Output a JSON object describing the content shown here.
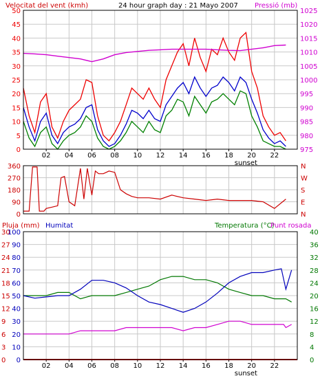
{
  "header": {
    "left_title": "Velocitat del vent (kmh)",
    "center_title": "24 hour graph day : 21 Mayo 2007",
    "right_title": "Pressió (mb)"
  },
  "colors": {
    "background": "#ffffff",
    "wind": "#ee0000",
    "wind_avg": "#0000cc",
    "gust_green": "#008000",
    "pressure": "#d000d0",
    "direction": "#cc0000",
    "rain": "#cc0000",
    "humidity": "#0000bb",
    "temperature": "#007700",
    "dewpoint": "#d000d0",
    "grid": "#c8c8c8"
  },
  "chart_data": [
    {
      "name": "wind-pressure",
      "type": "line",
      "title": "24 hour graph day : 21 Mayo 2007",
      "ylabel_left": "Velocitat del vent (kmh)",
      "ylabel_right": "Pressió (mb)",
      "x_ticks": [
        "02",
        "04",
        "06",
        "08",
        "10",
        "12",
        "14",
        "16",
        "18",
        "20",
        "22"
      ],
      "x_extra_label": "sunset",
      "xlim": [
        0,
        24
      ],
      "ylim_left": [
        0,
        50
      ],
      "ylim_right": [
        975,
        1025
      ],
      "yticks_left": [
        0,
        5,
        10,
        15,
        20,
        25,
        30,
        35,
        40,
        45,
        50
      ],
      "yticks_right": [
        975,
        980,
        985,
        990,
        995,
        1000,
        1005,
        1010,
        1015,
        1020,
        1025
      ],
      "grid": true,
      "series": [
        {
          "x": [
            0,
            0.5,
            1,
            1.5,
            2,
            2.5,
            3,
            3.5,
            4,
            4.5,
            5,
            5.5,
            6,
            6.5,
            7,
            7.5,
            8,
            8.5,
            9,
            9.5,
            10,
            10.5,
            11,
            11.5,
            12,
            12.5,
            13,
            13.5,
            14,
            14.5,
            15,
            15.5,
            16,
            16.5,
            17,
            17.5,
            18,
            18.5,
            19,
            19.5,
            20,
            20.5,
            21,
            21.5,
            22,
            22.5,
            23
          ],
          "values": [
            22,
            12,
            6,
            17,
            20,
            8,
            4,
            10,
            14,
            16,
            18,
            25,
            24,
            12,
            5,
            3,
            6,
            10,
            16,
            22,
            20,
            18,
            22,
            18,
            15,
            25,
            30,
            35,
            38,
            30,
            40,
            33,
            28,
            36,
            34,
            40,
            35,
            32,
            40,
            42,
            28,
            22,
            12,
            8,
            5,
            6,
            3
          ]
        },
        {
          "x": [
            0,
            0.5,
            1,
            1.5,
            2,
            2.5,
            3,
            3.5,
            4,
            4.5,
            5,
            5.5,
            6,
            6.5,
            7,
            7.5,
            8,
            8.5,
            9,
            9.5,
            10,
            10.5,
            11,
            11.5,
            12,
            12.5,
            13,
            13.5,
            14,
            14.5,
            15,
            15.5,
            16,
            16.5,
            17,
            17.5,
            18,
            18.5,
            19,
            19.5,
            20,
            20.5,
            21,
            21.5,
            22,
            22.5,
            23
          ],
          "values": [
            15,
            8,
            3,
            10,
            13,
            5,
            2,
            6,
            8,
            9,
            11,
            15,
            16,
            7,
            3,
            1,
            2,
            5,
            9,
            14,
            13,
            11,
            14,
            11,
            10,
            16,
            19,
            22,
            24,
            20,
            26,
            22,
            19,
            22,
            23,
            26,
            24,
            21,
            26,
            24,
            18,
            13,
            7,
            4,
            2,
            3,
            1
          ]
        },
        {
          "x": [
            0,
            0.5,
            1,
            1.5,
            2,
            2.5,
            3,
            3.5,
            4,
            4.5,
            5,
            5.5,
            6,
            6.5,
            7,
            7.5,
            8,
            8.5,
            9,
            9.5,
            10,
            10.5,
            11,
            11.5,
            12,
            12.5,
            13,
            13.5,
            14,
            14.5,
            15,
            15.5,
            16,
            16.5,
            17,
            17.5,
            18,
            18.5,
            19,
            19.5,
            20,
            20.5,
            21,
            21.5,
            22,
            22.5,
            23
          ],
          "values": [
            10,
            4,
            1,
            6,
            8,
            2,
            0,
            3,
            5,
            6,
            8,
            12,
            10,
            4,
            1,
            0,
            1,
            3,
            6,
            10,
            8,
            6,
            10,
            7,
            6,
            12,
            14,
            18,
            17,
            12,
            19,
            16,
            13,
            17,
            18,
            20,
            18,
            16,
            21,
            20,
            12,
            8,
            3,
            2,
            1,
            1,
            0
          ]
        },
        {
          "x": [
            0,
            1,
            2,
            3,
            4,
            5,
            6,
            7,
            8,
            9,
            10,
            11,
            12,
            13,
            14,
            15,
            16,
            17,
            18,
            19,
            20,
            21,
            22,
            23
          ],
          "values": [
            1009.5,
            1009.3,
            1009.0,
            1008.5,
            1008.0,
            1007.5,
            1006.5,
            1007.5,
            1009.0,
            1009.8,
            1010.2,
            1010.6,
            1010.8,
            1011.0,
            1011.0,
            1011.0,
            1011.0,
            1010.8,
            1010.6,
            1010.5,
            1011.0,
            1011.5,
            1012.3,
            1012.5
          ],
          "axis": "right"
        }
      ]
    },
    {
      "name": "wind-direction",
      "type": "line",
      "x_ticks": [
        "02",
        "04",
        "06",
        "08",
        "10",
        "12",
        "14",
        "16",
        "18",
        "20",
        "22"
      ],
      "xlim": [
        0,
        24
      ],
      "ylim": [
        0,
        360
      ],
      "yticks_left": [
        0,
        90,
        180,
        270,
        360
      ],
      "yticks_right": [
        "N",
        "E",
        "S",
        "W",
        "N"
      ],
      "series": [
        {
          "x": [
            0,
            0.5,
            0.8,
            1.2,
            1.4,
            1.8,
            2,
            2.5,
            3,
            3.3,
            3.6,
            4,
            4.5,
            5,
            5.3,
            5.6,
            6,
            6.3,
            6.6,
            7,
            7.5,
            8,
            8.5,
            9,
            9.5,
            10,
            11,
            12,
            13,
            14,
            15,
            16,
            17,
            18,
            19,
            20,
            21,
            22,
            23
          ],
          "values": [
            20,
            20,
            350,
            350,
            20,
            20,
            40,
            50,
            60,
            270,
            280,
            90,
            60,
            340,
            110,
            340,
            140,
            320,
            300,
            300,
            320,
            310,
            180,
            150,
            130,
            120,
            120,
            110,
            140,
            120,
            110,
            100,
            110,
            100,
            100,
            100,
            90,
            40,
            110
          ]
        }
      ]
    },
    {
      "name": "humidity-temperature",
      "type": "line",
      "labels_left": [
        "Pluja (mm)",
        "Humitat"
      ],
      "labels_right": [
        "Temperatura (°C)",
        "Punt rosada"
      ],
      "x_ticks": [
        "02",
        "04",
        "06",
        "08",
        "10",
        "12",
        "14",
        "16",
        "18",
        "20",
        "22"
      ],
      "x_extra_label": "sunset",
      "xlim": [
        0,
        24
      ],
      "yticks_rain": [
        0,
        3,
        6,
        9,
        12,
        15,
        18,
        21,
        24,
        27,
        30
      ],
      "yticks_humidity": [
        0,
        10,
        20,
        30,
        40,
        50,
        60,
        70,
        80,
        90,
        100
      ],
      "yticks_temp": [
        0,
        4,
        8,
        12,
        16,
        20,
        24,
        28,
        32,
        36,
        40
      ],
      "series": [
        {
          "name": "Humitat",
          "axis": "humidity",
          "x": [
            0,
            1,
            2,
            3,
            4,
            5,
            6,
            7,
            8,
            9,
            10,
            11,
            12,
            13,
            14,
            15,
            16,
            17,
            18,
            19,
            20,
            21,
            22,
            22.6,
            23,
            23.5
          ],
          "values": [
            50,
            48,
            49,
            50,
            50,
            55,
            62,
            62,
            60,
            56,
            50,
            45,
            43,
            40,
            37,
            40,
            45,
            52,
            60,
            65,
            68,
            68,
            70,
            71,
            55,
            70
          ]
        },
        {
          "name": "Temperatura (°C)",
          "axis": "temperature",
          "x": [
            0,
            1,
            2,
            3,
            4,
            5,
            6,
            7,
            8,
            9,
            10,
            11,
            12,
            13,
            14,
            15,
            16,
            17,
            18,
            19,
            20,
            21,
            22,
            23,
            23.5
          ],
          "values": [
            20,
            20,
            20,
            21,
            21,
            19,
            20,
            20,
            20,
            21,
            22,
            23,
            25,
            26,
            26,
            25,
            25,
            24,
            22,
            21,
            20,
            20,
            19,
            19,
            18
          ]
        },
        {
          "name": "Punt rosada",
          "axis": "temperature",
          "x": [
            0,
            1,
            2,
            3,
            4,
            5,
            6,
            7,
            8,
            9,
            10,
            11,
            12,
            13,
            14,
            15,
            16,
            17,
            18,
            19,
            20,
            21,
            22,
            22.8,
            23,
            23.5
          ],
          "values": [
            8,
            8,
            8,
            8,
            8,
            9,
            9,
            9,
            9,
            10,
            10,
            10,
            10,
            10,
            9,
            10,
            10,
            11,
            12,
            12,
            11,
            11,
            11,
            11,
            10,
            11
          ]
        },
        {
          "name": "Pluja (mm)",
          "axis": "rain",
          "x": [
            0,
            24
          ],
          "values": [
            0,
            0
          ]
        }
      ]
    }
  ]
}
